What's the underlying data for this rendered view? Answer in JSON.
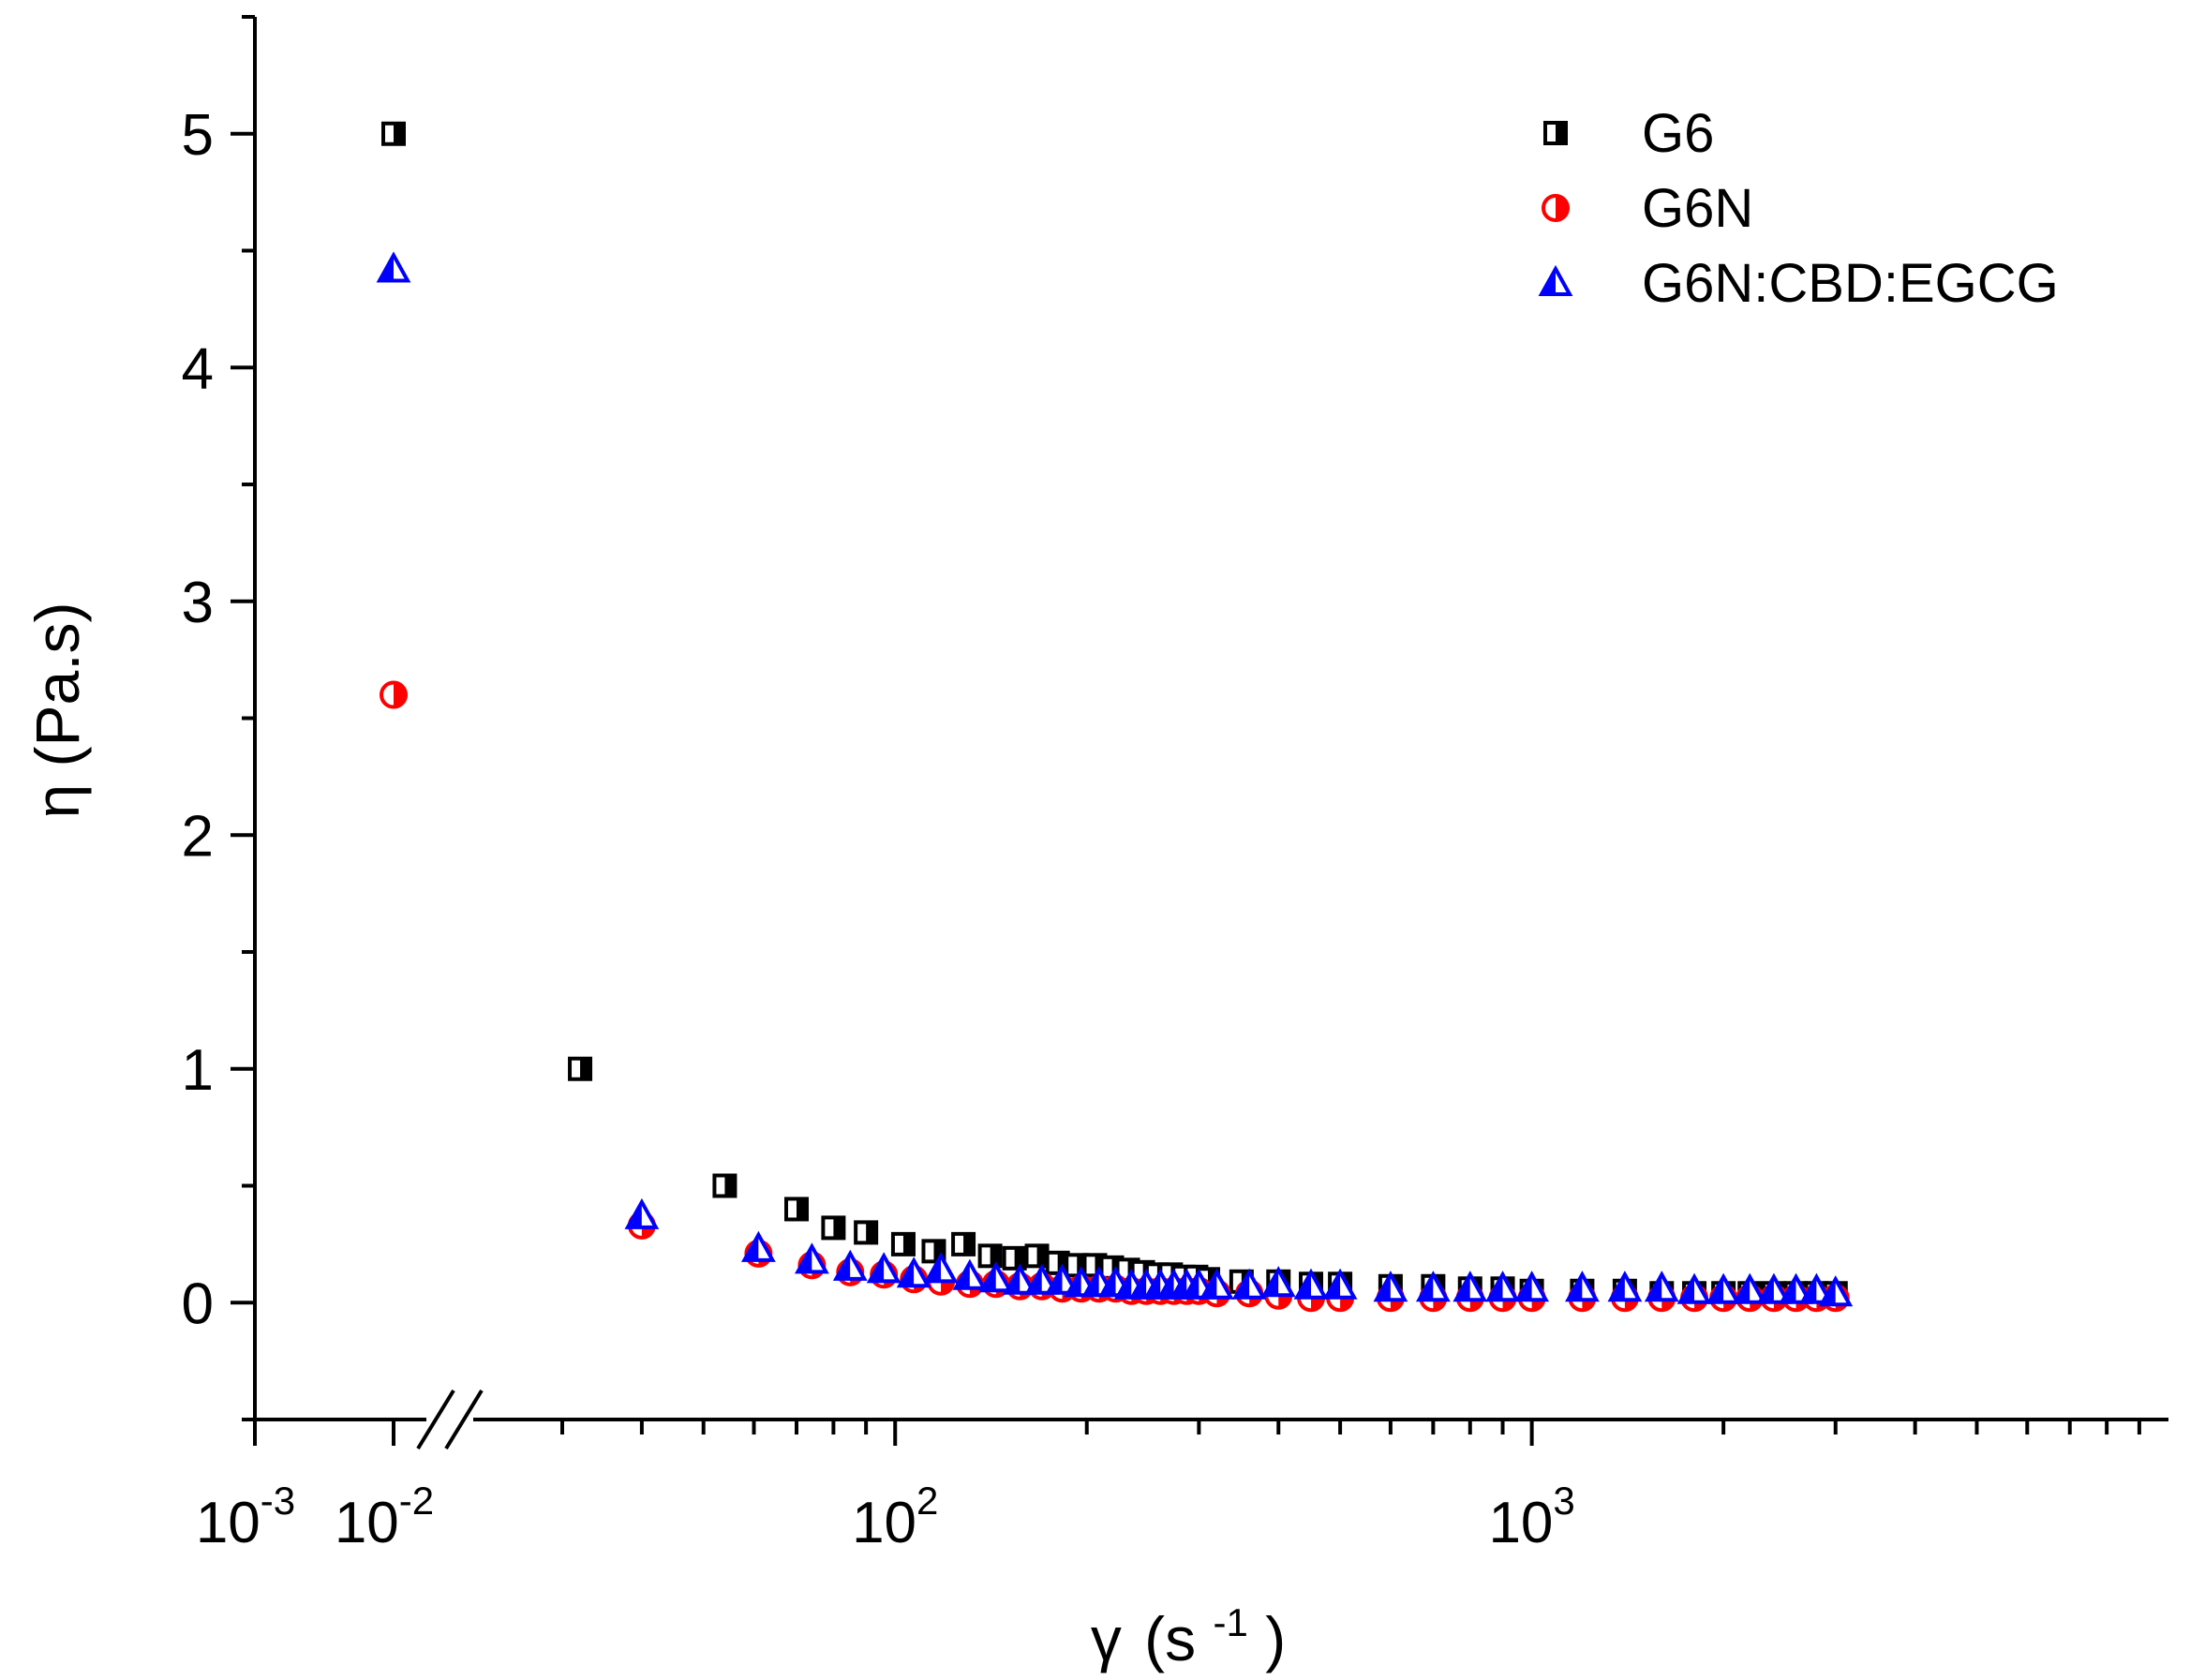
{
  "chart_data": {
    "type": "scatter",
    "xscale": "log (broken axis)",
    "xlabel": {
      "symbol": "γ",
      "unit_base": "(s",
      "unit_exp": "-1",
      "unit_close": ")"
    },
    "ylabel": "η (Pa.s)",
    "ylim": [
      -0.5,
      5.5
    ],
    "y_ticks": [
      "0",
      "1",
      "2",
      "3",
      "4",
      "5"
    ],
    "x_tick_labels": [
      {
        "base": "10",
        "exp": "-3"
      },
      {
        "base": "10",
        "exp": "-2"
      },
      {
        "base": "10",
        "exp": "2"
      },
      {
        "base": "10",
        "exp": "3"
      }
    ],
    "series": [
      {
        "name": "G6",
        "marker": "half-filled-square",
        "color": "#000000",
        "points": [
          [
            0.01,
            5.0
          ],
          [
            32,
            1.0
          ],
          [
            54,
            0.5
          ],
          [
            70,
            0.4
          ],
          [
            80,
            0.32
          ],
          [
            90,
            0.3
          ],
          [
            103,
            0.25
          ],
          [
            115,
            0.22
          ],
          [
            128,
            0.25
          ],
          [
            141,
            0.2
          ],
          [
            154,
            0.19
          ],
          [
            167,
            0.2
          ],
          [
            180,
            0.17
          ],
          [
            193,
            0.16
          ],
          [
            206,
            0.16
          ],
          [
            219,
            0.15
          ],
          [
            232,
            0.14
          ],
          [
            245,
            0.13
          ],
          [
            258,
            0.12
          ],
          [
            271,
            0.12
          ],
          [
            284,
            0.11
          ],
          [
            297,
            0.11
          ],
          [
            310,
            0.1
          ],
          [
            350,
            0.09
          ],
          [
            400,
            0.09
          ],
          [
            450,
            0.08
          ],
          [
            500,
            0.08
          ],
          [
            600,
            0.07
          ],
          [
            700,
            0.07
          ],
          [
            800,
            0.06
          ],
          [
            900,
            0.06
          ],
          [
            1000,
            0.05
          ],
          [
            1200,
            0.05
          ],
          [
            1400,
            0.05
          ],
          [
            1600,
            0.04
          ],
          [
            1800,
            0.04
          ],
          [
            2000,
            0.04
          ],
          [
            2200,
            0.04
          ],
          [
            2400,
            0.04
          ],
          [
            2600,
            0.04
          ],
          [
            2800,
            0.04
          ],
          [
            3000,
            0.04
          ]
        ]
      },
      {
        "name": "G6N",
        "marker": "half-filled-circle",
        "color": "#ff0000",
        "points": [
          [
            0.01,
            2.6
          ],
          [
            40,
            0.33
          ],
          [
            61,
            0.21
          ],
          [
            74,
            0.16
          ],
          [
            85,
            0.13
          ],
          [
            96,
            0.12
          ],
          [
            107,
            0.1
          ],
          [
            118,
            0.09
          ],
          [
            131,
            0.08
          ],
          [
            144,
            0.08
          ],
          [
            157,
            0.07
          ],
          [
            170,
            0.07
          ],
          [
            183,
            0.06
          ],
          [
            196,
            0.06
          ],
          [
            209,
            0.06
          ],
          [
            222,
            0.06
          ],
          [
            235,
            0.05
          ],
          [
            248,
            0.05
          ],
          [
            261,
            0.05
          ],
          [
            274,
            0.05
          ],
          [
            287,
            0.05
          ],
          [
            300,
            0.05
          ],
          [
            320,
            0.04
          ],
          [
            360,
            0.04
          ],
          [
            400,
            0.03
          ],
          [
            450,
            0.02
          ],
          [
            500,
            0.02
          ],
          [
            600,
            0.02
          ],
          [
            700,
            0.02
          ],
          [
            800,
            0.02
          ],
          [
            900,
            0.02
          ],
          [
            1000,
            0.02
          ],
          [
            1200,
            0.02
          ],
          [
            1400,
            0.02
          ],
          [
            1600,
            0.02
          ],
          [
            1800,
            0.02
          ],
          [
            2000,
            0.02
          ],
          [
            2200,
            0.02
          ],
          [
            2400,
            0.02
          ],
          [
            2600,
            0.02
          ],
          [
            2800,
            0.02
          ],
          [
            3000,
            0.02
          ]
        ]
      },
      {
        "name": "G6N:CBD:EGCG",
        "marker": "half-filled-triangle",
        "color": "#0000ff",
        "points": [
          [
            0.01,
            4.42
          ],
          [
            40,
            0.37
          ],
          [
            61,
            0.23
          ],
          [
            74,
            0.18
          ],
          [
            85,
            0.15
          ],
          [
            96,
            0.14
          ],
          [
            107,
            0.12
          ],
          [
            118,
            0.14
          ],
          [
            131,
            0.11
          ],
          [
            144,
            0.1
          ],
          [
            157,
            0.09
          ],
          [
            170,
            0.09
          ],
          [
            183,
            0.09
          ],
          [
            196,
            0.08
          ],
          [
            209,
            0.08
          ],
          [
            222,
            0.08
          ],
          [
            235,
            0.07
          ],
          [
            248,
            0.07
          ],
          [
            261,
            0.07
          ],
          [
            274,
            0.07
          ],
          [
            287,
            0.07
          ],
          [
            300,
            0.07
          ],
          [
            320,
            0.07
          ],
          [
            360,
            0.07
          ],
          [
            400,
            0.08
          ],
          [
            450,
            0.07
          ],
          [
            500,
            0.07
          ],
          [
            600,
            0.06
          ],
          [
            700,
            0.06
          ],
          [
            800,
            0.06
          ],
          [
            900,
            0.06
          ],
          [
            1000,
            0.06
          ],
          [
            1200,
            0.06
          ],
          [
            1400,
            0.06
          ],
          [
            1600,
            0.06
          ],
          [
            1800,
            0.05
          ],
          [
            2000,
            0.05
          ],
          [
            2200,
            0.05
          ],
          [
            2400,
            0.05
          ],
          [
            2600,
            0.05
          ],
          [
            2800,
            0.05
          ],
          [
            3000,
            0.04
          ]
        ]
      }
    ],
    "legend": {
      "position": "top-right"
    }
  }
}
